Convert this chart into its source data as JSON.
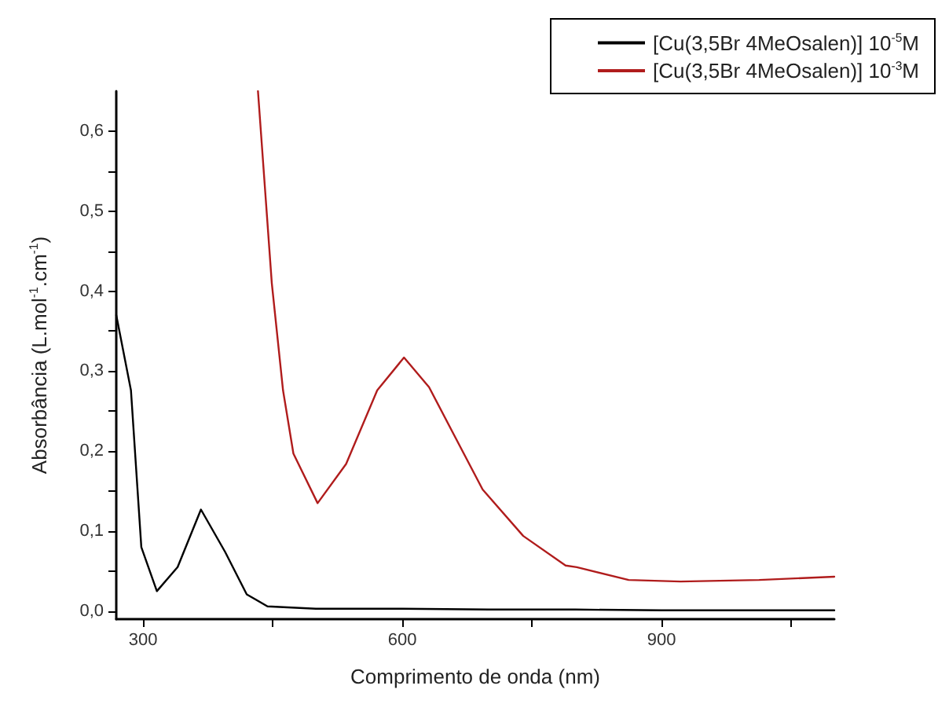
{
  "chart_data": {
    "type": "line",
    "xlabel": "Comprimento de onda (nm)",
    "ylabel": "Absorbância (L.mol$^{-1}$.cm$^{-1}$)",
    "xlim": [
      269,
      1100
    ],
    "ylim": [
      -0.01,
      0.65
    ],
    "xticks": [
      300,
      {
        "value": 450,
        "label": null
      },
      600,
      {
        "value": 750,
        "label": null
      },
      900,
      {
        "value": 1050,
        "label": null
      }
    ],
    "yticks": [
      {
        "value": 0,
        "label": "0,0"
      },
      {
        "value": 0.05,
        "label": null
      },
      {
        "value": 0.1,
        "label": "0,1"
      },
      {
        "value": 0.15,
        "label": null
      },
      {
        "value": 0.2,
        "label": "0,2"
      },
      {
        "value": 0.25,
        "label": null
      },
      {
        "value": 0.3,
        "label": "0,3"
      },
      {
        "value": 0.35,
        "label": null
      },
      {
        "value": 0.4,
        "label": "0,4"
      },
      {
        "value": 0.45,
        "label": null
      },
      {
        "value": 0.5,
        "label": "0,5"
      },
      {
        "value": 0.55,
        "label": null
      },
      {
        "value": 0.6,
        "label": "0,6"
      }
    ],
    "grid": false,
    "legend": "top right",
    "marker": "none",
    "line_style": "solid",
    "series": [
      {
        "name": "[Cu(3,5Br 4MeOsalen)] 10$^{-5}$M",
        "color": "#000000",
        "x": [
          269,
          286,
          298,
          316,
          340,
          367,
          395,
          420,
          444,
          500,
          600,
          700,
          800,
          900,
          1000,
          1100
        ],
        "values": [
          0.37,
          0.276,
          0.08,
          0.025,
          0.055,
          0.127,
          0.074,
          0.021,
          0.006,
          0.003,
          0.003,
          0.002,
          0.002,
          0.001,
          0.001,
          0.001
        ]
      },
      {
        "name": "[Cu(3,5Br 4MeOsalen)] 10$^{-3}$M",
        "color": "#b01c1c",
        "x": [
          433,
          449,
          462,
          474,
          502,
          535,
          571,
          602,
          631,
          660,
          693,
          740,
          789,
          802,
          862,
          922,
          1013,
          1100
        ],
        "values": [
          0.65,
          0.41,
          0.276,
          0.197,
          0.135,
          0.184,
          0.276,
          0.317,
          0.28,
          0.22,
          0.152,
          0.094,
          0.057,
          0.055,
          0.039,
          0.037,
          0.039,
          0.043
        ]
      }
    ]
  }
}
